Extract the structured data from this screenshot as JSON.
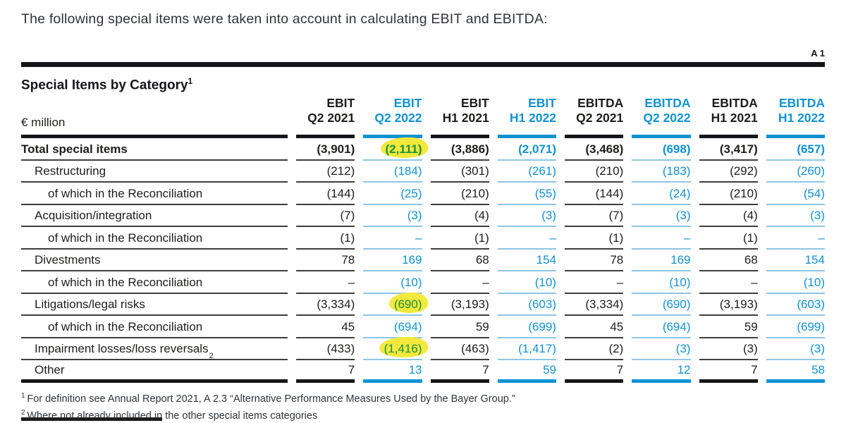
{
  "page": {
    "intro_text": "The following special items were taken into account in calculating EBIT and EBITDA:",
    "table_ref": "A 1"
  },
  "table": {
    "title": "Special Items by Category",
    "title_superscript": "1",
    "unit_label": "€ million",
    "columns": [
      {
        "measure": "EBIT",
        "period": "Q2 2021",
        "color": "black"
      },
      {
        "measure": "EBIT",
        "period": "Q2 2022",
        "color": "blue"
      },
      {
        "measure": "EBIT",
        "period": "H1 2021",
        "color": "black"
      },
      {
        "measure": "EBIT",
        "period": "H1 2022",
        "color": "blue"
      },
      {
        "measure": "EBITDA",
        "period": "Q2 2021",
        "color": "black"
      },
      {
        "measure": "EBITDA",
        "period": "Q2 2022",
        "color": "blue"
      },
      {
        "measure": "EBITDA",
        "period": "H1 2021",
        "color": "black"
      },
      {
        "measure": "EBITDA",
        "period": "H1 2022",
        "color": "blue"
      }
    ],
    "rows": [
      {
        "label": "Total special items",
        "indent": 0,
        "bold": true,
        "values": [
          "(3,901)",
          "(2,111)",
          "(3,886)",
          "(2,071)",
          "(3,468)",
          "(698)",
          "(3,417)",
          "(657)"
        ],
        "highlights": [
          1
        ]
      },
      {
        "label": "Restructuring",
        "indent": 1,
        "values": [
          "(212)",
          "(184)",
          "(301)",
          "(261)",
          "(210)",
          "(183)",
          "(292)",
          "(260)"
        ]
      },
      {
        "label": "of which in the Reconciliation",
        "indent": 2,
        "values": [
          "(144)",
          "(25)",
          "(210)",
          "(55)",
          "(144)",
          "(24)",
          "(210)",
          "(54)"
        ]
      },
      {
        "label": "Acquisition/integration",
        "indent": 1,
        "values": [
          "(7)",
          "(3)",
          "(4)",
          "(3)",
          "(7)",
          "(3)",
          "(4)",
          "(3)"
        ]
      },
      {
        "label": "of which in the Reconciliation",
        "indent": 2,
        "values": [
          "(1)",
          "–",
          "(1)",
          "–",
          "(1)",
          "–",
          "(1)",
          "–"
        ]
      },
      {
        "label": "Divestments",
        "indent": 1,
        "values": [
          "78",
          "169",
          "68",
          "154",
          "78",
          "169",
          "68",
          "154"
        ]
      },
      {
        "label": "of which in the Reconciliation",
        "indent": 2,
        "values": [
          "–",
          "(10)",
          "–",
          "(10)",
          "–",
          "(10)",
          "–",
          "(10)"
        ]
      },
      {
        "label": "Litigations/legal risks",
        "indent": 1,
        "values": [
          "(3,334)",
          "(690)",
          "(3,193)",
          "(603)",
          "(3,334)",
          "(690)",
          "(3,193)",
          "(603)"
        ],
        "highlights": [
          1
        ]
      },
      {
        "label": "of which in the Reconciliation",
        "indent": 2,
        "values": [
          "45",
          "(694)",
          "59",
          "(699)",
          "45",
          "(694)",
          "59",
          "(699)"
        ]
      },
      {
        "label": "Impairment losses/loss reversals",
        "label_superscript": "2",
        "indent": 1,
        "values": [
          "(433)",
          "(1,416)",
          "(463)",
          "(1,417)",
          "(2)",
          "(3)",
          "(3)",
          "(3)"
        ],
        "highlights": [
          1
        ]
      },
      {
        "label": "Other",
        "indent": 1,
        "values": [
          "7",
          "13",
          "7",
          "59",
          "7",
          "12",
          "7",
          "58"
        ]
      }
    ],
    "footnotes": [
      {
        "marker": "1",
        "text": "For definition see Annual Report 2021, A 2.3 “Alternative Performance Measures Used by the Bayer Group.”"
      },
      {
        "marker": "2",
        "text": "Where not already included in the other special items categories"
      }
    ]
  },
  "colors": {
    "accent_blue": "#1292d2",
    "light_blue_rule": "#8ec6e2",
    "text_black": "#1d1d1b",
    "highlight_yellow": "#f3e93c",
    "highlight_text_green": "#1c8f3c"
  }
}
